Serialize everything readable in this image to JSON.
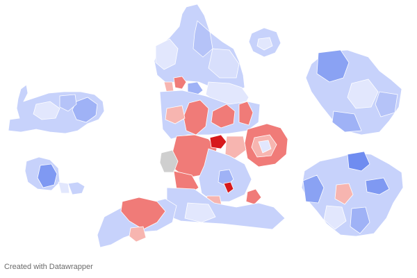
{
  "credit": "Created with Datawrapper",
  "palette": {
    "blue_strong": "#6f8cf0",
    "blue_mid": "#9fb2f6",
    "blue_light": "#c7d2fb",
    "blue_pale": "#e2e7fd",
    "red_strong": "#d7191c",
    "red_mid": "#f07b78",
    "red_light": "#f7b5b0",
    "grey_nodata": "#cfcfcf"
  },
  "map_parts": [
    "england",
    "wales",
    "anglesey",
    "north-east-inset",
    "london-inset"
  ]
}
